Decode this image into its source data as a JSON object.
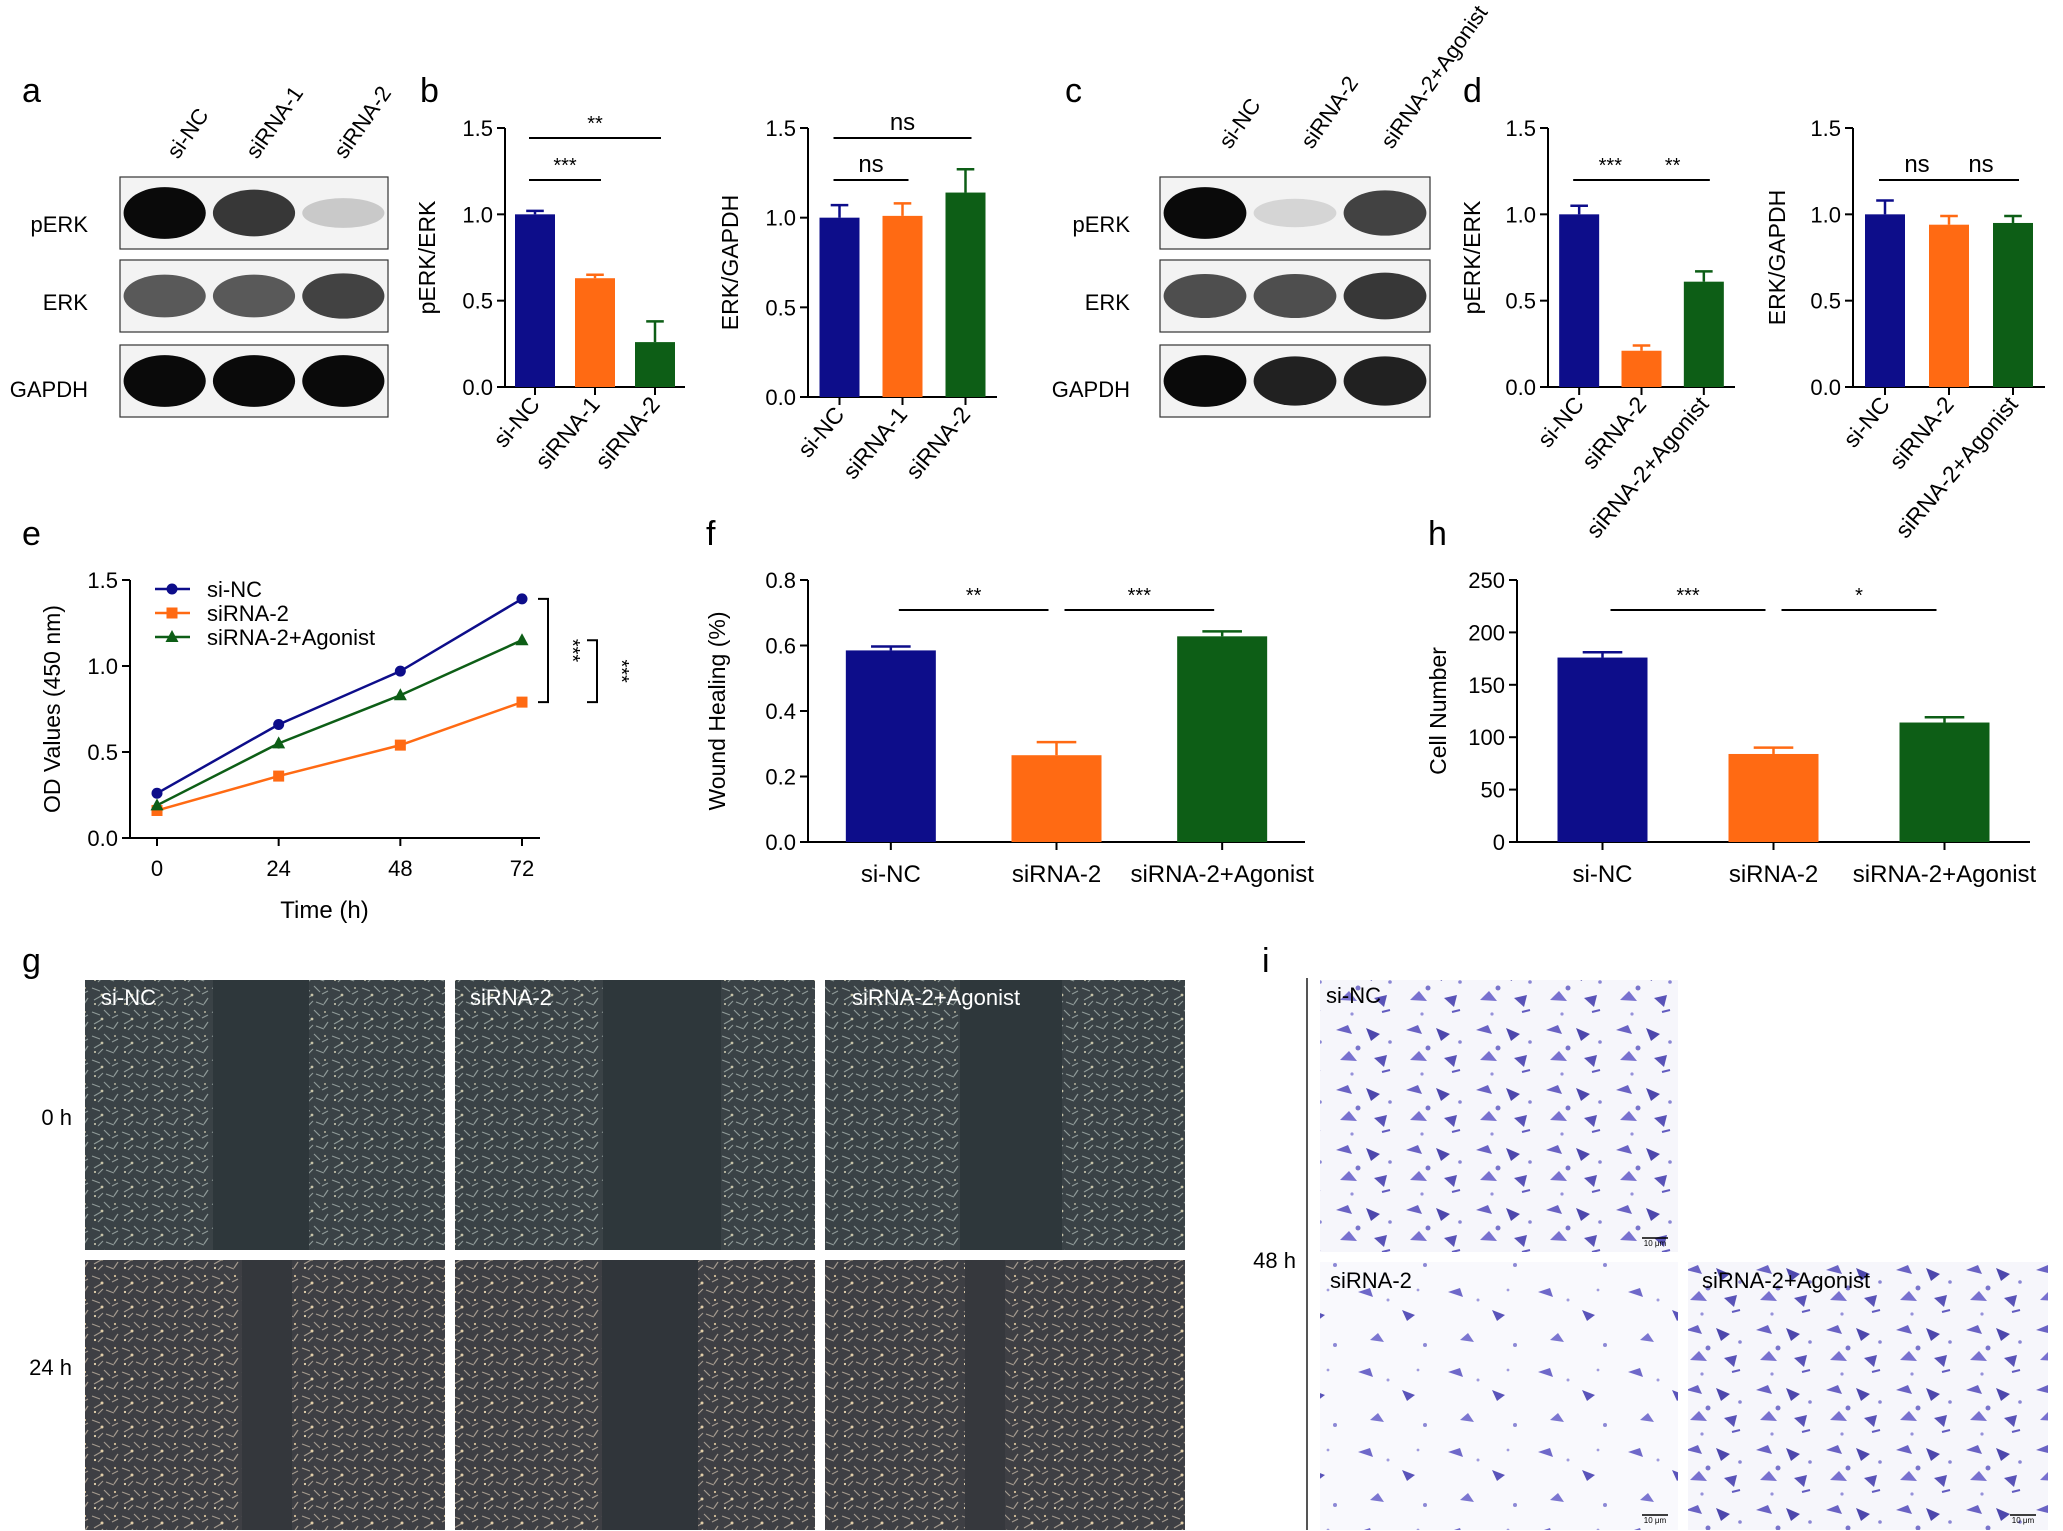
{
  "panel_letters": [
    "a",
    "b",
    "c",
    "d",
    "e",
    "f",
    "g",
    "h",
    "i"
  ],
  "colors": {
    "si_nc": "#0d0d8a",
    "sirna1": "#ff6a13",
    "sirna2_orange": "#ff6a13",
    "sirna2_green": "#0d5e16",
    "agonist": "#0d5e16"
  },
  "blot_a": {
    "lanes": [
      "si-NC",
      "siRNA-1",
      "siRNA-2"
    ],
    "rows": [
      "pERK",
      "ERK",
      "GAPDH"
    ],
    "intensity": [
      [
        1.0,
        0.8,
        0.15
      ],
      [
        0.65,
        0.65,
        0.75
      ],
      [
        1.0,
        1.0,
        1.0
      ]
    ]
  },
  "blot_c": {
    "lanes": [
      "si-NC",
      "siRNA-2",
      "siRNA-2+Agonist"
    ],
    "rows": [
      "pERK",
      "ERK",
      "GAPDH"
    ],
    "intensity": [
      [
        1.0,
        0.1,
        0.75
      ],
      [
        0.7,
        0.7,
        0.8
      ],
      [
        1.0,
        0.9,
        0.9
      ]
    ]
  },
  "gallery_g": {
    "columns": [
      "si-NC",
      "siRNA-2",
      "siRNA-2+Agonist"
    ],
    "rows": [
      "0 h",
      "24 h"
    ]
  },
  "gallery_i": {
    "row_label": "48 h",
    "labels": [
      "si-NC",
      "siRNA-2",
      "siRNA-2+Agonist"
    ],
    "scale_bar": "10 μm"
  },
  "chart_data": [
    {
      "id": "b1",
      "type": "bar",
      "categories": [
        "si-NC",
        "siRNA-1",
        "siRNA-2"
      ],
      "values": [
        1.0,
        0.63,
        0.26
      ],
      "errors": [
        0.02,
        0.02,
        0.12
      ],
      "ylabel": "pERK/ERK",
      "ylim": [
        0,
        1.5
      ],
      "yticks": [
        "0.0",
        "0.5",
        "1.0",
        "1.5"
      ],
      "sig": [
        {
          "from": 0,
          "to": 1,
          "label": "***",
          "level": 1
        },
        {
          "from": 0,
          "to": 2,
          "label": "**",
          "level": 2
        }
      ]
    },
    {
      "id": "b2",
      "type": "bar",
      "categories": [
        "si-NC",
        "siRNA-1",
        "siRNA-2"
      ],
      "values": [
        1.0,
        1.01,
        1.14
      ],
      "errors": [
        0.07,
        0.07,
        0.13
      ],
      "ylabel": "ERK/GAPDH",
      "ylim": [
        0,
        1.5
      ],
      "yticks": [
        "0.0",
        "0.5",
        "1.0",
        "1.5"
      ],
      "sig": [
        {
          "from": 0,
          "to": 1,
          "label": "ns",
          "level": 1
        },
        {
          "from": 0,
          "to": 2,
          "label": "ns",
          "level": 2
        }
      ]
    },
    {
      "id": "d1",
      "type": "bar",
      "categories": [
        "si-NC",
        "siRNA-2",
        "siRNA-2+Agonist"
      ],
      "values": [
        1.0,
        0.21,
        0.61
      ],
      "errors": [
        0.05,
        0.03,
        0.06
      ],
      "ylabel": "pERK/ERK",
      "ylim": [
        0,
        1.5
      ],
      "yticks": [
        "0.0",
        "0.5",
        "1.0",
        "1.5"
      ],
      "sig": [
        {
          "from": 0,
          "to": 1,
          "label": "***",
          "level": 1
        },
        {
          "from": 1,
          "to": 2,
          "label": "**",
          "level": 1
        }
      ]
    },
    {
      "id": "d2",
      "type": "bar",
      "categories": [
        "si-NC",
        "siRNA-2",
        "siRNA-2+Agonist"
      ],
      "values": [
        1.0,
        0.94,
        0.95
      ],
      "errors": [
        0.08,
        0.05,
        0.04
      ],
      "ylabel": "ERK/GAPDH",
      "ylim": [
        0,
        1.5
      ],
      "yticks": [
        "0.0",
        "0.5",
        "1.0",
        "1.5"
      ],
      "sig": [
        {
          "from": 0,
          "to": 1,
          "label": "ns",
          "level": 1
        },
        {
          "from": 1,
          "to": 2,
          "label": "ns",
          "level": 1
        }
      ]
    },
    {
      "id": "e",
      "type": "line",
      "x": [
        0,
        24,
        48,
        72
      ],
      "xticks": [
        "0",
        "24",
        "48",
        "72"
      ],
      "xlabel": "Time (h)",
      "ylabel": "OD Values (450 nm)",
      "ylim": [
        0,
        1.5
      ],
      "yticks": [
        "0.0",
        "0.5",
        "1.0",
        "1.5"
      ],
      "series": [
        {
          "name": "si-NC",
          "values": [
            0.26,
            0.66,
            0.97,
            1.39
          ],
          "errors": [
            0.01,
            0.02,
            0.03,
            0.01
          ],
          "marker": "circle"
        },
        {
          "name": "siRNA-2",
          "values": [
            0.16,
            0.36,
            0.54,
            0.79
          ],
          "errors": [
            0.01,
            0.01,
            0.01,
            0.03
          ],
          "marker": "square"
        },
        {
          "name": "siRNA-2+Agonist",
          "values": [
            0.19,
            0.55,
            0.83,
            1.15
          ],
          "errors": [
            0.01,
            0.03,
            0.01,
            0.01
          ],
          "marker": "triangle"
        }
      ],
      "sig": [
        "***",
        "***"
      ],
      "legend": "top-left"
    },
    {
      "id": "f",
      "type": "bar",
      "categories": [
        "si-NC",
        "siRNA-2",
        "siRNA-2+Agonist"
      ],
      "values": [
        0.585,
        0.265,
        0.628
      ],
      "errors": [
        0.012,
        0.04,
        0.015
      ],
      "ylabel": "Wound Healing (%)",
      "ylim": [
        0,
        0.8
      ],
      "yticks": [
        "0.0",
        "0.2",
        "0.4",
        "0.6",
        "0.8"
      ],
      "sig": [
        {
          "from": 0,
          "to": 1,
          "label": "**",
          "level": 1
        },
        {
          "from": 1,
          "to": 2,
          "label": "***",
          "level": 1
        }
      ]
    },
    {
      "id": "h",
      "type": "bar",
      "categories": [
        "si-NC",
        "siRNA-2",
        "siRNA-2+Agonist"
      ],
      "values": [
        176,
        84,
        114
      ],
      "errors": [
        5,
        6,
        5
      ],
      "ylabel": "Cell Number",
      "ylim": [
        0,
        250
      ],
      "yticks": [
        "0",
        "50",
        "100",
        "150",
        "200",
        "250"
      ],
      "sig": [
        {
          "from": 0,
          "to": 1,
          "label": "***",
          "level": 1
        },
        {
          "from": 1,
          "to": 2,
          "label": "*",
          "level": 1
        }
      ]
    }
  ]
}
